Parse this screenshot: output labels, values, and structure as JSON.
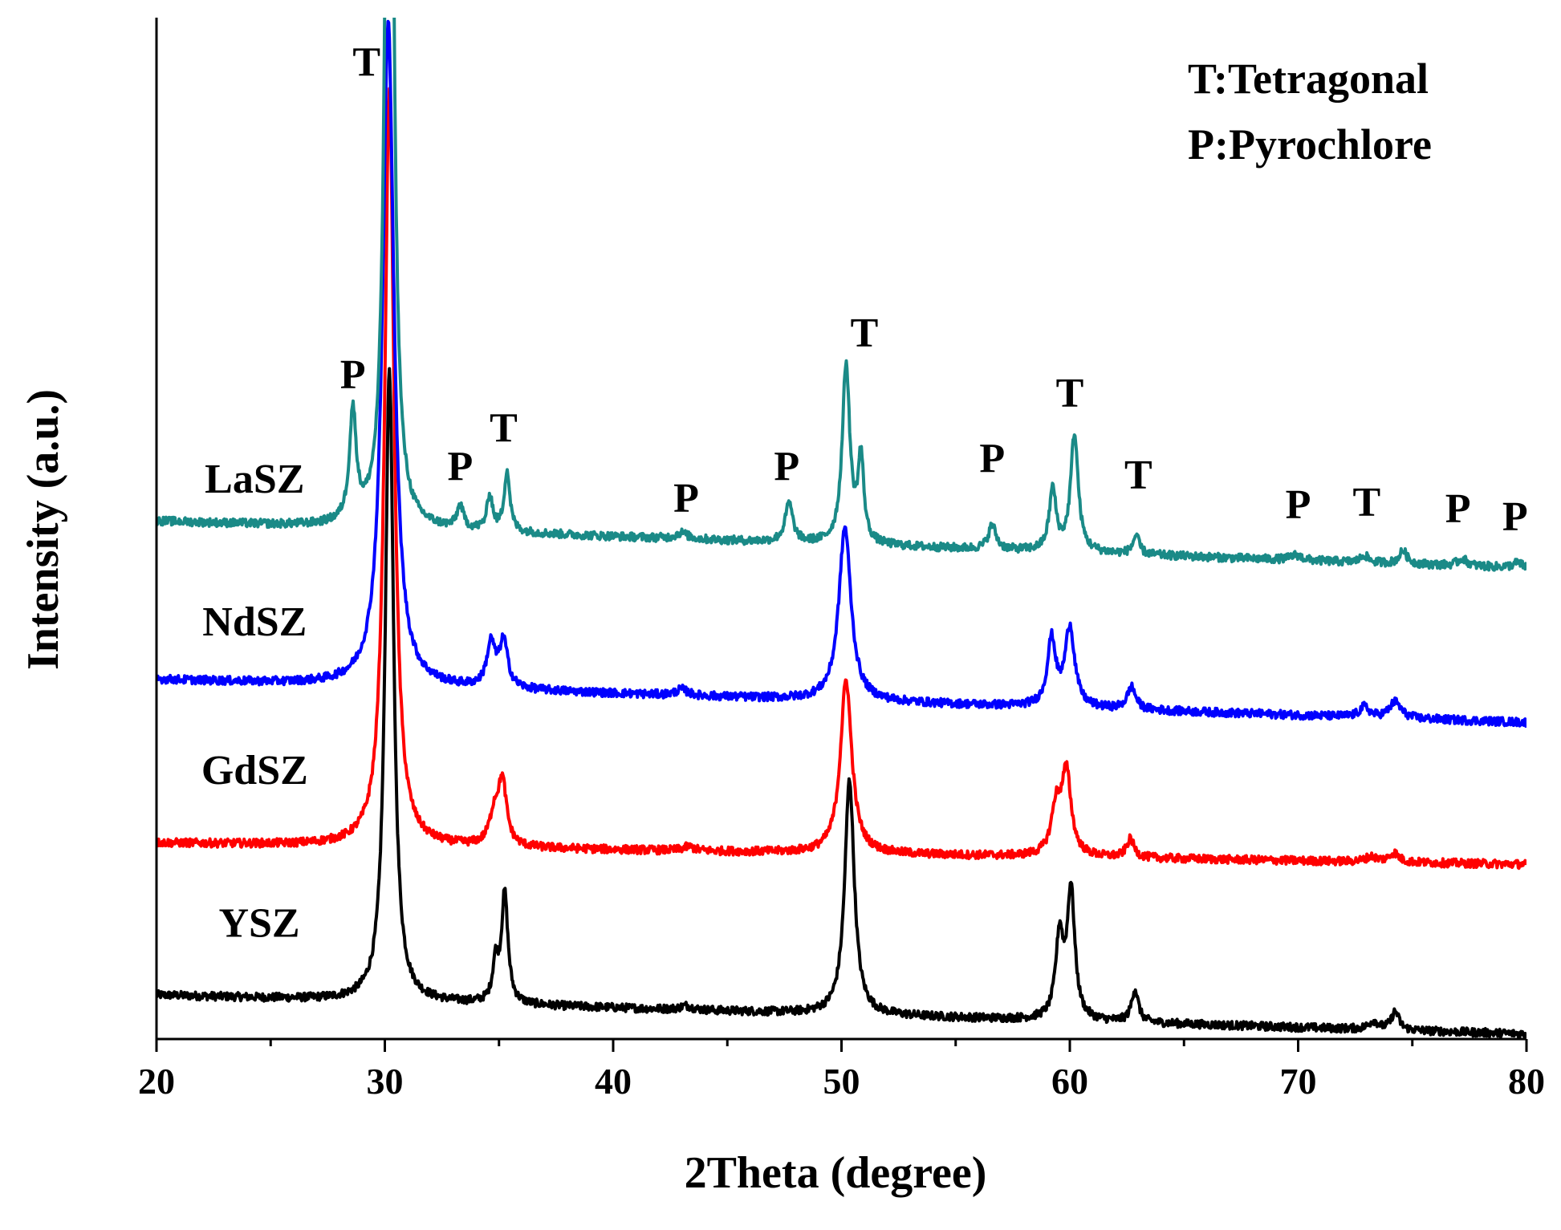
{
  "chart_data": {
    "type": "line",
    "title": "",
    "xlabel": "2Theta (degree)",
    "ylabel": "Intensity (a.u.)",
    "xlim": [
      20,
      80
    ],
    "xticks": [
      20,
      30,
      40,
      50,
      60,
      70,
      80
    ],
    "xtick_labels": [
      "20",
      "30",
      "40",
      "50",
      "60",
      "70",
      "80"
    ],
    "ylim": [
      0,
      100
    ],
    "legend": [
      "T:Tetragonal",
      "P:Pyrochlore"
    ],
    "series": [
      {
        "name": "YSZ",
        "color": "#000000",
        "baseline_start": 4.3,
        "baseline_end": 0.5,
        "noise": 0.4,
        "peaks": [
          [
            30.2,
            62,
            0.22
          ],
          [
            34.85,
            3.8,
            0.15
          ],
          [
            35.25,
            10.7,
            0.17
          ],
          [
            43.2,
            0.4,
            0.3
          ],
          [
            50.35,
            23,
            0.25
          ],
          [
            59.55,
            8.0,
            0.2
          ],
          [
            60.05,
            12.6,
            0.2
          ],
          [
            62.85,
            3.2,
            0.18
          ],
          [
            73.3,
            0.8,
            0.25
          ],
          [
            74.25,
            1.8,
            0.2
          ]
        ]
      },
      {
        "name": "GdSZ",
        "color": "#ff0000",
        "baseline_start": 19.2,
        "baseline_end": 17.1,
        "noise": 0.4,
        "peaks": [
          [
            30.2,
            74,
            0.25
          ],
          [
            34.8,
            3.0,
            0.25
          ],
          [
            35.15,
            6.0,
            0.22
          ],
          [
            43.3,
            0.4,
            0.3
          ],
          [
            50.2,
            17,
            0.3
          ],
          [
            59.4,
            4.5,
            0.25
          ],
          [
            59.85,
            8.0,
            0.25
          ],
          [
            62.65,
            1.8,
            0.2
          ],
          [
            73.2,
            0.5,
            0.3
          ],
          [
            74.2,
            0.9,
            0.25
          ]
        ]
      },
      {
        "name": "NdSZ",
        "color": "#0000ff",
        "baseline_start": 35.2,
        "baseline_end": 31.0,
        "noise": 0.4,
        "peaks": [
          [
            30.15,
            65,
            0.3
          ],
          [
            34.65,
            4.2,
            0.22
          ],
          [
            35.2,
            4.5,
            0.22
          ],
          [
            43.0,
            0.6,
            0.3
          ],
          [
            50.15,
            17,
            0.32
          ],
          [
            59.2,
            6.5,
            0.22
          ],
          [
            60.0,
            7.8,
            0.25
          ],
          [
            62.7,
            2.2,
            0.22
          ],
          [
            72.9,
            1.0,
            0.25
          ],
          [
            74.25,
            1.6,
            0.3
          ]
        ]
      },
      {
        "name": "LaSZ",
        "color": "#1a8a87",
        "baseline_start": 50.7,
        "baseline_end": 46.1,
        "noise": 0.4,
        "peaks": [
          [
            28.6,
            10.7,
            0.18
          ],
          [
            30.2,
            118,
            0.18
          ],
          [
            33.3,
            2.2,
            0.17
          ],
          [
            34.6,
            3.4,
            0.15
          ],
          [
            35.35,
            5.9,
            0.15
          ],
          [
            43.0,
            0.6,
            0.3
          ],
          [
            47.7,
            3.8,
            0.2
          ],
          [
            50.2,
            17.5,
            0.2
          ],
          [
            50.85,
            8.2,
            0.15
          ],
          [
            56.6,
            2.4,
            0.2
          ],
          [
            59.25,
            6.0,
            0.18
          ],
          [
            60.2,
            11.5,
            0.2
          ],
          [
            62.9,
            1.8,
            0.17
          ],
          [
            69.9,
            0.5,
            0.3
          ],
          [
            72.9,
            0.7,
            0.2
          ],
          [
            74.6,
            1.3,
            0.2
          ],
          [
            77.2,
            0.7,
            0.25
          ],
          [
            79.6,
            0.5,
            0.25
          ]
        ]
      }
    ],
    "series_labels": [
      {
        "text": "LaSZ",
        "x": 24.3,
        "y": 53.5
      },
      {
        "text": "NdSZ",
        "x": 24.3,
        "y": 39.5
      },
      {
        "text": "GdSZ",
        "x": 24.3,
        "y": 25.0
      },
      {
        "text": "YSZ",
        "x": 24.5,
        "y": 10.0
      }
    ],
    "annotations": [
      {
        "text": "T",
        "x": 29.2,
        "y": 94.3
      },
      {
        "text": "P",
        "x": 28.6,
        "y": 63.7
      },
      {
        "text": "P",
        "x": 33.3,
        "y": 54.7
      },
      {
        "text": "T",
        "x": 35.2,
        "y": 58.5
      },
      {
        "text": "P",
        "x": 43.2,
        "y": 51.6
      },
      {
        "text": "P",
        "x": 47.6,
        "y": 54.7
      },
      {
        "text": "T",
        "x": 51.0,
        "y": 67.8
      },
      {
        "text": "P",
        "x": 56.6,
        "y": 55.5
      },
      {
        "text": "T",
        "x": 60.0,
        "y": 61.9
      },
      {
        "text": "T",
        "x": 63.0,
        "y": 53.9
      },
      {
        "text": "P",
        "x": 70.0,
        "y": 51.0
      },
      {
        "text": "T",
        "x": 73.0,
        "y": 51.2
      },
      {
        "text": "P",
        "x": 77.0,
        "y": 50.6
      },
      {
        "text": "P",
        "x": 79.5,
        "y": 49.8
      }
    ]
  }
}
